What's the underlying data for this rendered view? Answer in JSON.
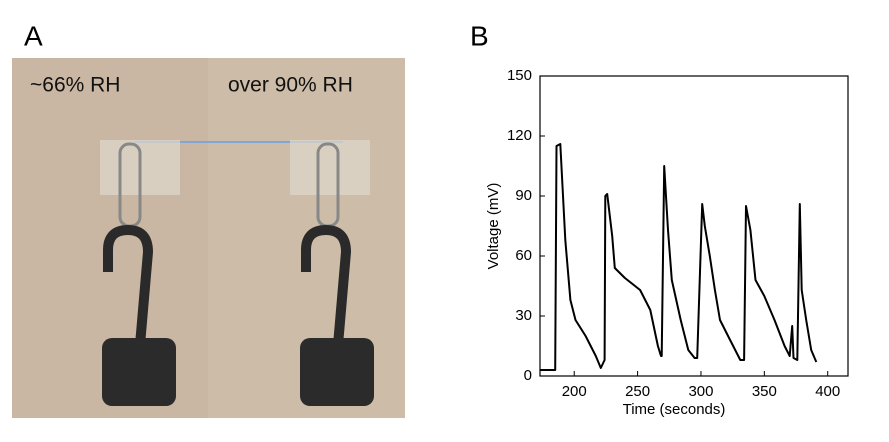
{
  "figure": {
    "panel_a": "A",
    "panel_b": "B",
    "photo_labels": [
      "~66% RH",
      "over 90% RH"
    ]
  },
  "chart_data": {
    "type": "line",
    "x_label": "Time (seconds)",
    "y_label": "Voltage (mV)",
    "color": "#000000",
    "x": [
      173,
      185,
      186,
      189,
      193,
      197,
      201,
      209,
      217,
      221,
      224,
      224.5,
      226,
      230,
      232,
      240,
      252,
      260,
      266,
      268.5,
      269,
      271,
      274,
      277,
      284,
      290,
      295,
      297,
      301,
      303,
      307,
      311,
      315,
      323,
      327,
      331,
      334,
      335.5,
      339,
      343,
      350,
      358,
      366,
      370,
      372,
      373,
      376,
      378,
      379.5,
      383,
      387,
      391
    ],
    "values": [
      3,
      3,
      115,
      116,
      68,
      38,
      28,
      20,
      10,
      4,
      8,
      90,
      91,
      70,
      54,
      49,
      43,
      33,
      15,
      10,
      10,
      105,
      73,
      48,
      28,
      13,
      9,
      9,
      86,
      75,
      60,
      43,
      28,
      18,
      13,
      8,
      8,
      85,
      73,
      48,
      40,
      28,
      15,
      10,
      25,
      9,
      8,
      86,
      43,
      28,
      13,
      7
    ],
    "xlim": [
      173,
      416
    ],
    "ylim": [
      0,
      150
    ],
    "xticks": [
      200,
      250,
      300,
      350,
      400
    ],
    "yticks": [
      0,
      30,
      60,
      90,
      120,
      150
    ]
  }
}
